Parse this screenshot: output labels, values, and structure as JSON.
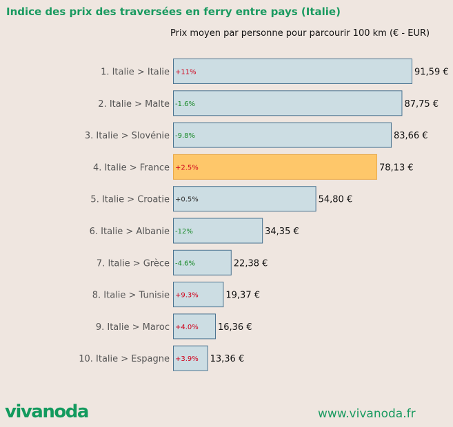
{
  "header": {
    "title": "Indice des prix des traversées en ferry entre pays (Italie)"
  },
  "footer": {
    "logo_text": "vivanoda",
    "url": "www.vivanoda.fr"
  },
  "colors": {
    "title": "#1a9a60",
    "bar_default": "#ccdde3",
    "bar_default_border": "#4a7390",
    "bar_highlight": "#fec76a",
    "bar_highlight_border": "#e9a94a",
    "change_positive": "#d0021b",
    "change_negative": "#1a8a2a",
    "change_neutral": "#333333"
  },
  "chart_data": {
    "type": "bar",
    "orientation": "horizontal",
    "title": "Prix moyen par personne pour parcourir 100 km (€ - EUR)",
    "xlim": [
      0,
      91.59
    ],
    "grid": false,
    "categories": [
      "1. Italie > Italie",
      "2. Italie > Malte",
      "3. Italie > Slovénie",
      "4. Italie > France",
      "5. Italie > Croatie",
      "6. Italie > Albanie",
      "7. Italie > Grèce",
      "8. Italie > Tunisie",
      "9. Italie > Maroc",
      "10. Italie > Espagne"
    ],
    "values": [
      91.59,
      87.75,
      83.66,
      78.13,
      54.8,
      34.35,
      22.38,
      19.37,
      16.36,
      13.36
    ],
    "value_labels": [
      "91,59 €",
      "87,75 €",
      "83,66 €",
      "78,13 €",
      "54,80 €",
      "34,35 €",
      "22,38 €",
      "19,37 €",
      "16,36 €",
      "13,36 €"
    ],
    "changes": [
      "+11%",
      "-1.6%",
      "-9.8%",
      "+2.5%",
      "+0.5%",
      "-12%",
      "-4.6%",
      "+9.3%",
      "+4.0%",
      "+3.9%"
    ],
    "change_trend": [
      "up",
      "down",
      "down",
      "up",
      "neutral",
      "down",
      "down",
      "up",
      "up",
      "up"
    ],
    "highlighted": [
      false,
      false,
      false,
      true,
      false,
      false,
      false,
      false,
      false,
      false
    ]
  }
}
